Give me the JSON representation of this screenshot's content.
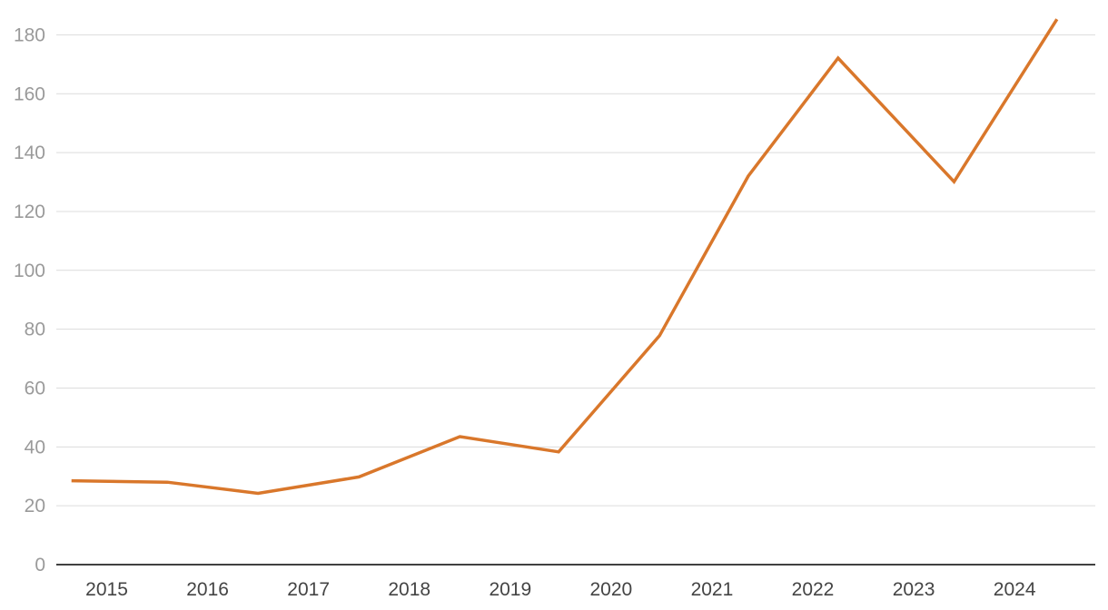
{
  "chart_data": {
    "type": "line",
    "title": "",
    "xlabel": "",
    "ylabel": "",
    "x_ticks": [
      "2015",
      "2016",
      "2017",
      "2018",
      "2019",
      "2020",
      "2021",
      "2022",
      "2023",
      "2024"
    ],
    "x_range": [
      2015,
      2025.3
    ],
    "ylim": [
      0,
      190
    ],
    "y_ticks": [
      0,
      20,
      40,
      60,
      80,
      100,
      120,
      140,
      160,
      180
    ],
    "grid": true,
    "legend": "none",
    "colors": {
      "line": "#d9772b",
      "grid": "#dcdcdc",
      "axis": "#000000"
    },
    "series": [
      {
        "x": [
          2015.15,
          2016.1,
          2017.0,
          2018.0,
          2019.0,
          2019.98,
          2020.98,
          2021.86,
          2022.75,
          2023.9,
          2024.92
        ],
        "y": [
          28.5,
          28.0,
          24.2,
          29.8,
          43.5,
          38.3,
          77.8,
          132,
          172.1,
          130.1,
          185.3
        ]
      }
    ]
  }
}
